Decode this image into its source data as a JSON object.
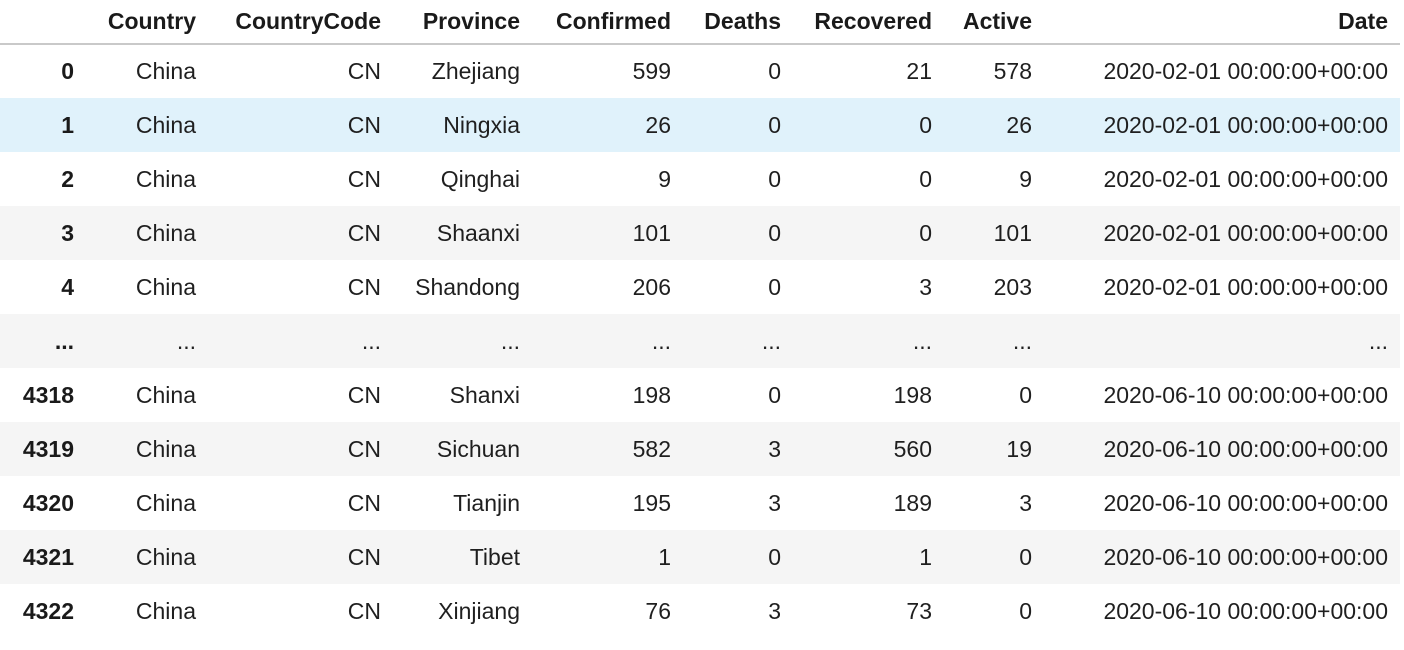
{
  "table": {
    "headers": [
      "",
      "Country",
      "CountryCode",
      "Province",
      "Confirmed",
      "Deaths",
      "Recovered",
      "Active",
      "Date"
    ],
    "rows": [
      [
        "0",
        "China",
        "CN",
        "Zhejiang",
        "599",
        "0",
        "21",
        "578",
        "2020-02-01 00:00:00+00:00"
      ],
      [
        "1",
        "China",
        "CN",
        "Ningxia",
        "26",
        "0",
        "0",
        "26",
        "2020-02-01 00:00:00+00:00"
      ],
      [
        "2",
        "China",
        "CN",
        "Qinghai",
        "9",
        "0",
        "0",
        "9",
        "2020-02-01 00:00:00+00:00"
      ],
      [
        "3",
        "China",
        "CN",
        "Shaanxi",
        "101",
        "0",
        "0",
        "101",
        "2020-02-01 00:00:00+00:00"
      ],
      [
        "4",
        "China",
        "CN",
        "Shandong",
        "206",
        "0",
        "3",
        "203",
        "2020-02-01 00:00:00+00:00"
      ],
      [
        "...",
        "...",
        "...",
        "...",
        "...",
        "...",
        "...",
        "...",
        "..."
      ],
      [
        "4318",
        "China",
        "CN",
        "Shanxi",
        "198",
        "0",
        "198",
        "0",
        "2020-06-10 00:00:00+00:00"
      ],
      [
        "4319",
        "China",
        "CN",
        "Sichuan",
        "582",
        "3",
        "560",
        "19",
        "2020-06-10 00:00:00+00:00"
      ],
      [
        "4320",
        "China",
        "CN",
        "Tianjin",
        "195",
        "3",
        "189",
        "3",
        "2020-06-10 00:00:00+00:00"
      ],
      [
        "4321",
        "China",
        "CN",
        "Tibet",
        "1",
        "0",
        "1",
        "0",
        "2020-06-10 00:00:00+00:00"
      ],
      [
        "4322",
        "China",
        "CN",
        "Xinjiang",
        "76",
        "3",
        "73",
        "0",
        "2020-06-10 00:00:00+00:00"
      ]
    ],
    "hover_row_color": "#e0f2fb",
    "stripe_color": "#f5f5f5"
  }
}
